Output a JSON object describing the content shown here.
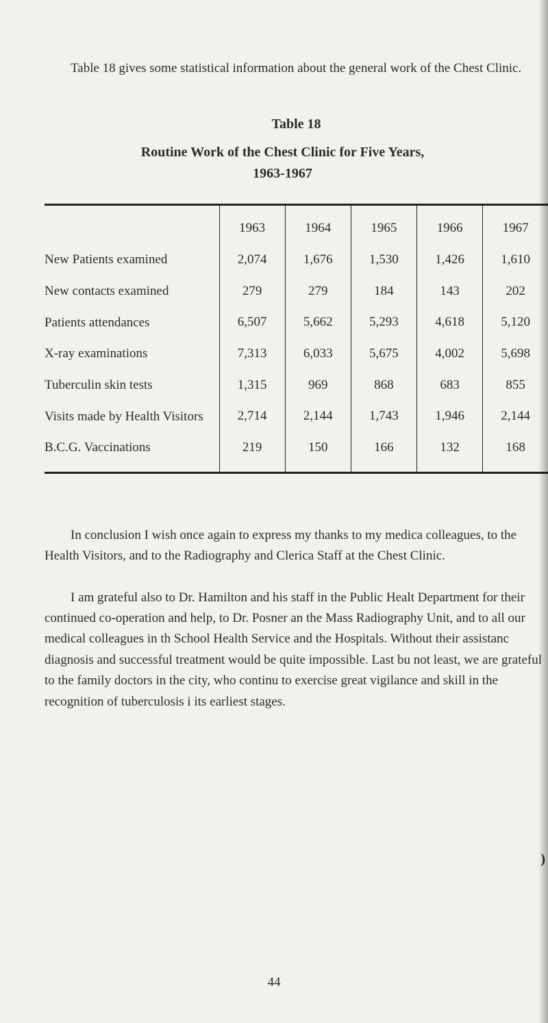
{
  "intro": {
    "text_part1": "Table 18 gives some statistical information about the general work",
    "text_part2": "of the Chest Clinic."
  },
  "table": {
    "label": "Table 18",
    "title_line1": "Routine Work of the Chest Clinic for Five Years,",
    "title_line2": "1963-1967",
    "columns": [
      "",
      "1963",
      "1964",
      "1965",
      "1966",
      "1967"
    ],
    "rows": [
      {
        "label": "New Patients examined",
        "values": [
          "2,074",
          "1,676",
          "1,530",
          "1,426",
          "1,610"
        ]
      },
      {
        "label": "New contacts examined",
        "values": [
          "279",
          "279",
          "184",
          "143",
          "202"
        ]
      },
      {
        "label": "Patients attendances",
        "values": [
          "6,507",
          "5,662",
          "5,293",
          "4,618",
          "5,120"
        ]
      },
      {
        "label": "X-ray examinations",
        "values": [
          "7,313",
          "6,033",
          "5,675",
          "4,002",
          "5,698"
        ]
      },
      {
        "label": "Tuberculin skin tests",
        "values": [
          "1,315",
          "969",
          "868",
          "683",
          "855"
        ]
      },
      {
        "label": "Visits made by Health Visitors",
        "values": [
          "2,714",
          "2,144",
          "1,743",
          "1,946",
          "2,144"
        ]
      },
      {
        "label": "B.C.G. Vaccinations",
        "values": [
          "219",
          "150",
          "166",
          "132",
          "168"
        ]
      }
    ],
    "column_widths": [
      "255px",
      "96px",
      "96px",
      "96px",
      "96px",
      "96px"
    ],
    "border_color": "#222222",
    "font_size": 19
  },
  "paragraphs": {
    "p1": "In conclusion I wish once again to express my thanks to my medica colleagues, to the Health Visitors, and to the Radiography and Clerica Staff at the Chest Clinic.",
    "p2": "I am grateful also to Dr. Hamilton and his staff in the Public Healt Department for their continued co-operation and help, to Dr. Posner an the Mass Radiography Unit, and to all our medical colleagues in th School Health Service and the Hospitals. Without their assistanc diagnosis and successful treatment would be quite impossible. Last bu not least, we are grateful to the family doctors in the city, who continu to exercise great vigilance and skill in the recognition of tuberculosis i its earliest stages."
  },
  "page_number": "44",
  "margin_mark": ")",
  "colors": {
    "background": "#f2f2ed",
    "text": "#2a2a2a",
    "border": "#222222"
  }
}
